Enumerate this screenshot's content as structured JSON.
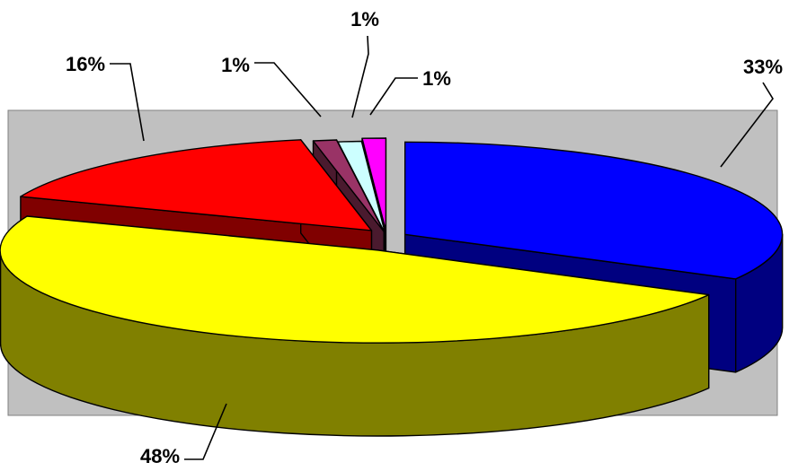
{
  "chart_data": {
    "type": "pie",
    "style": "3d-exploded",
    "title": "",
    "legend": "none",
    "slices": [
      {
        "label": "33%",
        "value": 33,
        "color": "#0000ff",
        "side_color": "#000080"
      },
      {
        "label": "48%",
        "value": 48,
        "color": "#ffff00",
        "side_color": "#808000"
      },
      {
        "label": "16%",
        "value": 16,
        "color": "#ff0000",
        "side_color": "#800000"
      },
      {
        "label": "1%",
        "value": 1,
        "color": "#993366",
        "side_color": "#4a1a2e"
      },
      {
        "label": "1%",
        "value": 1,
        "color": "#ccffff",
        "side_color": "#6a8a8a"
      },
      {
        "label": "1%",
        "value": 1,
        "color": "#ff00ff",
        "side_color": "#800080"
      }
    ],
    "plot_area_color": "#c0c0c0"
  }
}
